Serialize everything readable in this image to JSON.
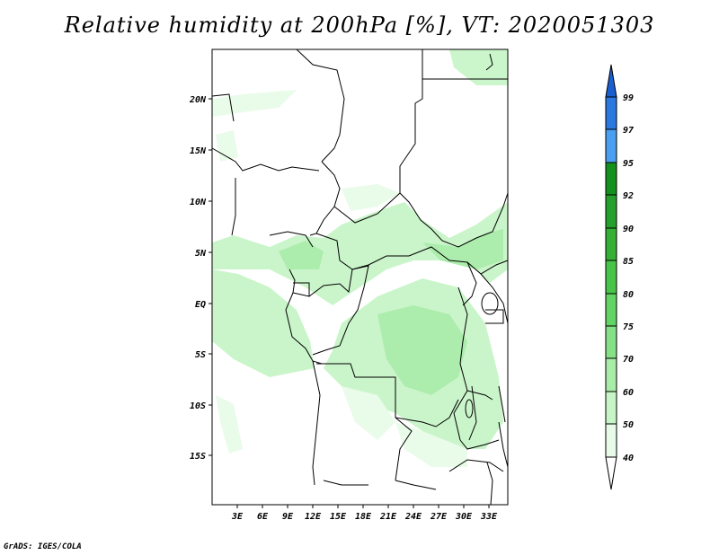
{
  "title": "Relative humidity at 200hPa [%], VT: 2020051303",
  "credit": "GrADS: IGES/COLA",
  "map": {
    "lat_labels": [
      "20N",
      "15N",
      "10N",
      "5N",
      "EQ",
      "5S",
      "10S",
      "15S"
    ],
    "lon_labels": [
      "3E",
      "6E",
      "9E",
      "12E",
      "15E",
      "18E",
      "21E",
      "24E",
      "27E",
      "30E",
      "33E"
    ]
  },
  "colorbar": {
    "levels": [
      "99",
      "97",
      "95",
      "92",
      "90",
      "85",
      "80",
      "75",
      "70",
      "60",
      "50",
      "40"
    ],
    "colors": [
      "#1a5fd0",
      "#2a78e0",
      "#4a9ff0",
      "#14901e",
      "#25a02c",
      "#35b035",
      "#48c44a",
      "#62d464",
      "#86e086",
      "#a8eca8",
      "#c8f5c8",
      "#e8fbe8"
    ]
  }
}
